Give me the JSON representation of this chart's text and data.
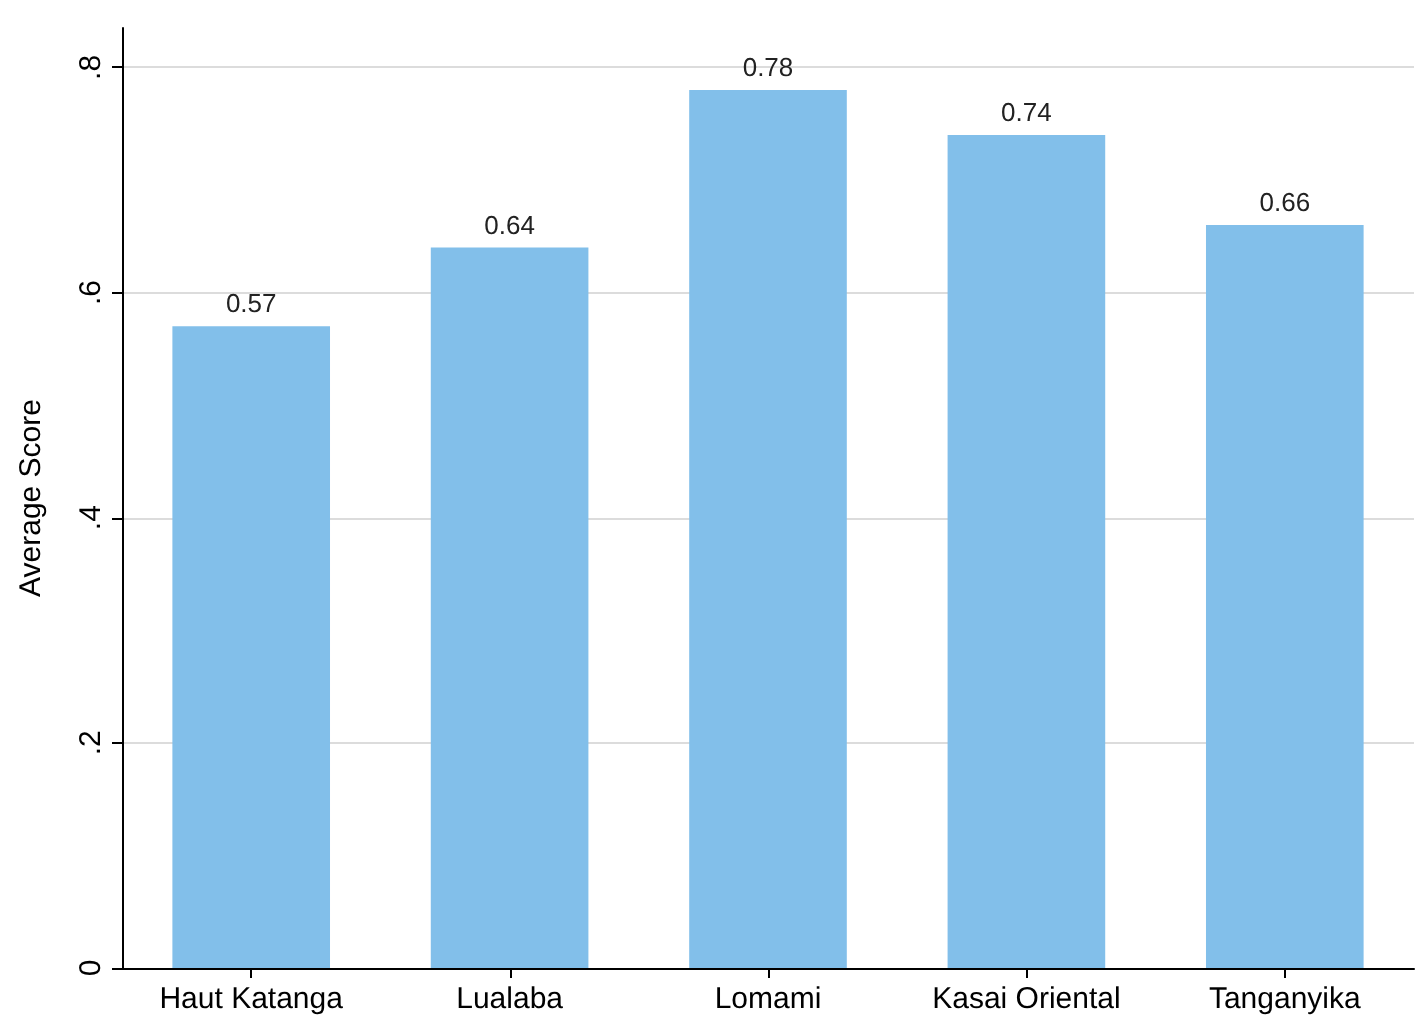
{
  "chart_data": {
    "type": "bar",
    "ylabel": "Average Score",
    "categories": [
      "Haut Katanga",
      "Lualaba",
      "Lomami",
      "Kasai Oriental",
      "Tanganyika"
    ],
    "values": [
      0.57,
      0.64,
      0.78,
      0.74,
      0.66
    ],
    "color": "#82bfea",
    "data_labels": true,
    "ylim": [
      0,
      0.835
    ],
    "yticks": [
      0,
      {
        "value": 0.2,
        "label": ".2"
      },
      {
        "value": 0.4,
        "label": ".4"
      },
      {
        "value": 0.6,
        "label": ".6"
      },
      {
        "value": 0.8,
        "label": ".8"
      }
    ],
    "grid": "y"
  }
}
